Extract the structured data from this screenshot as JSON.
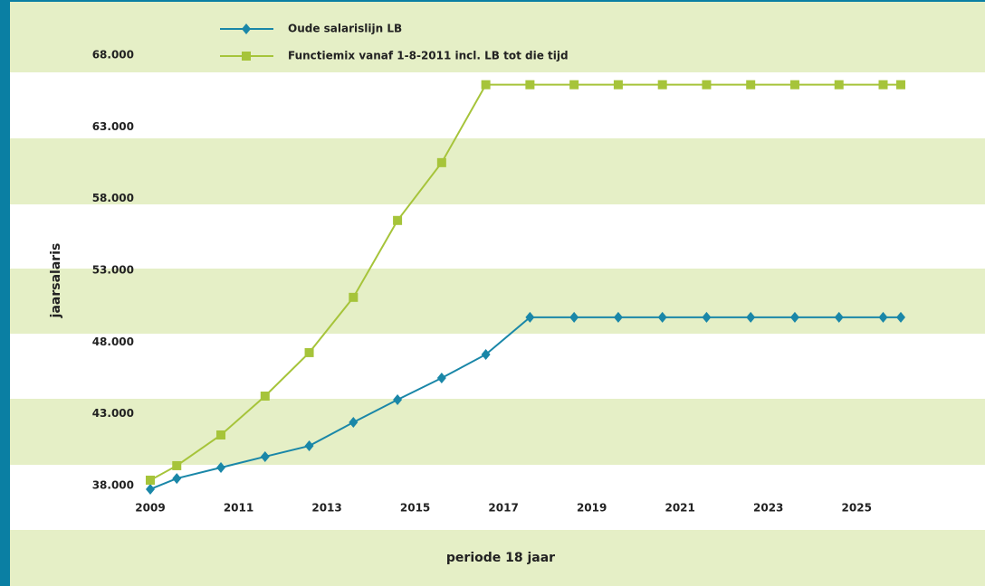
{
  "chart_data": {
    "type": "line",
    "xlabel": "periode 18 jaar",
    "ylabel": "jaarsalaris",
    "x": [
      2009,
      2009.6,
      2010.6,
      2011.6,
      2012.6,
      2013.6,
      2014.6,
      2015.6,
      2016.6,
      2017.6,
      2018.6,
      2019.6,
      2020.6,
      2021.6,
      2022.6,
      2023.6,
      2024.6,
      2025.6,
      2026
    ],
    "series": [
      {
        "name": "Oude salarislijn LB",
        "color": "#1a87a8",
        "marker": "diamond",
        "values": [
          37750,
          38500,
          39260,
          40020,
          40770,
          42410,
          43990,
          45500,
          47140,
          49730,
          49730,
          49730,
          49730,
          49730,
          49730,
          49730,
          49730,
          49730,
          49730
        ]
      },
      {
        "name": "Functiemix vanaf 1-8-2011 incl. LB tot die tijd",
        "color": "#a6c43a",
        "marker": "square",
        "values": [
          38380,
          39390,
          41530,
          44240,
          47270,
          51120,
          56480,
          60510,
          65940,
          65940,
          65940,
          65940,
          65940,
          65940,
          65940,
          65940,
          65940,
          65940,
          65940
        ]
      }
    ],
    "xlim": [
      2009,
      2026
    ],
    "xticks": [
      2009,
      2011,
      2013,
      2015,
      2017,
      2019,
      2021,
      2023,
      2025
    ],
    "ylim": [
      38000,
      68000
    ],
    "yticks": [
      {
        "value": 38000,
        "label": "38.000"
      },
      {
        "value": 43000,
        "label": "43.000"
      },
      {
        "value": 48000,
        "label": "48.000"
      },
      {
        "value": 53000,
        "label": "53.000"
      },
      {
        "value": 58000,
        "label": "58.000"
      },
      {
        "value": 63000,
        "label": "63.000"
      },
      {
        "value": 68000,
        "label": "68.000"
      }
    ],
    "legend": "top"
  }
}
